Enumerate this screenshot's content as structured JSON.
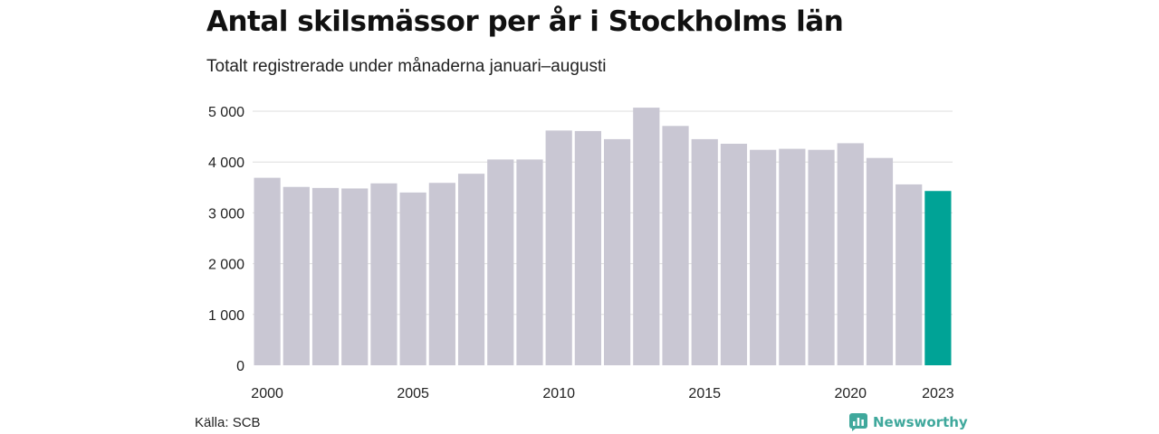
{
  "title": "Antal skilsmässor per år i Stockholms län",
  "subtitle": "Totalt registrerade under månaderna januari–augusti",
  "source": "Källa: SCB",
  "brand": {
    "name": "Newsworthy",
    "icon": "newsworthy-logo-icon",
    "color": "#3fa89c"
  },
  "chart_data": {
    "type": "bar",
    "categories": [
      "2000",
      "2001",
      "2002",
      "2003",
      "2004",
      "2005",
      "2006",
      "2007",
      "2008",
      "2009",
      "2010",
      "2011",
      "2012",
      "2013",
      "2014",
      "2015",
      "2016",
      "2017",
      "2018",
      "2019",
      "2020",
      "2021",
      "2022",
      "2023"
    ],
    "values": [
      3690,
      3510,
      3490,
      3480,
      3580,
      3400,
      3590,
      3770,
      4050,
      4050,
      4620,
      4610,
      4450,
      5070,
      4710,
      4450,
      4360,
      4240,
      4260,
      4240,
      4370,
      4080,
      3560,
      3430
    ],
    "ylim": [
      0,
      5000
    ],
    "yticks": [
      0,
      1000,
      2000,
      3000,
      4000,
      5000
    ],
    "ytick_labels": [
      "0",
      "1 000",
      "2 000",
      "3 000",
      "4 000",
      "5 000"
    ],
    "xtick_labels": [
      {
        "label": "2000",
        "index": 0
      },
      {
        "label": "2005",
        "index": 5
      },
      {
        "label": "2010",
        "index": 10
      },
      {
        "label": "2015",
        "index": 15
      },
      {
        "label": "2020",
        "index": 20
      },
      {
        "label": "2023",
        "index": 23
      }
    ],
    "bar_color": "#c9c7d3",
    "highlight_color": "#00a396",
    "highlight_index": 23,
    "grid": true,
    "xlabel": "",
    "ylabel": ""
  }
}
